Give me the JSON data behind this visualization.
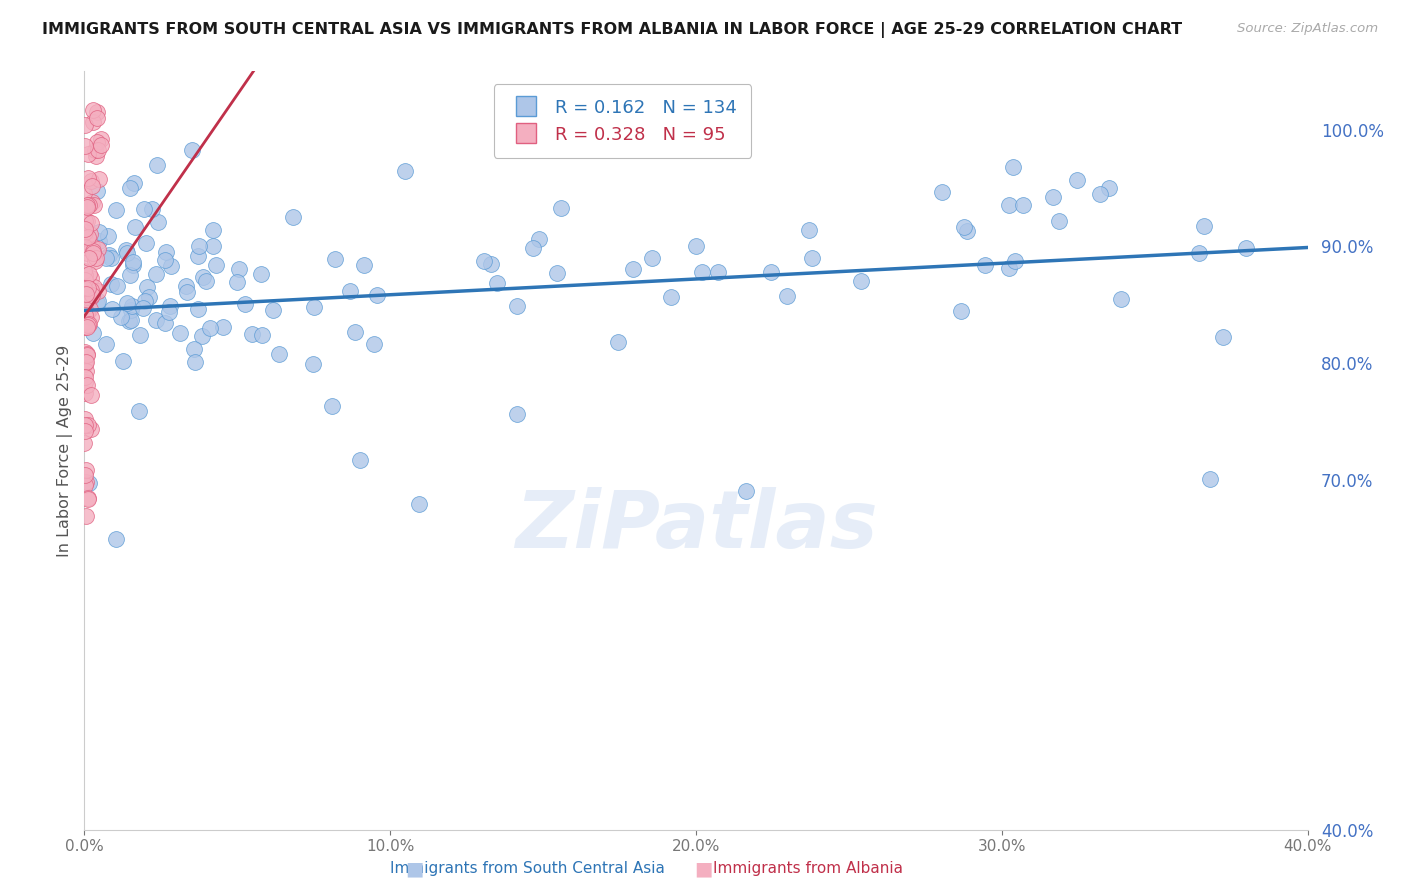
{
  "title": "IMMIGRANTS FROM SOUTH CENTRAL ASIA VS IMMIGRANTS FROM ALBANIA IN LABOR FORCE | AGE 25-29 CORRELATION CHART",
  "source": "Source: ZipAtlas.com",
  "ylabel": "In Labor Force | Age 25-29",
  "xlim": [
    0.0,
    0.4
  ],
  "ylim": [
    0.4,
    1.05
  ],
  "xticks": [
    0.0,
    0.1,
    0.2,
    0.3,
    0.4
  ],
  "yticks_right": [
    0.4,
    0.7,
    0.8,
    0.9,
    1.0
  ],
  "blue_R": 0.162,
  "blue_N": 134,
  "pink_R": 0.328,
  "pink_N": 95,
  "blue_color": "#aec6e8",
  "blue_edge_color": "#5b9bd5",
  "blue_line_color": "#2e75b6",
  "pink_color": "#f4afc0",
  "pink_edge_color": "#e06080",
  "pink_line_color": "#c0304a",
  "pink_dash_color": "#e8a0b0",
  "watermark": "ZiPatlas",
  "legend_label_blue": "Immigrants from South Central Asia",
  "legend_label_pink": "Immigrants from Albania",
  "background_color": "#ffffff",
  "grid_color": "#dddddd",
  "title_color": "#1a1a1a",
  "axis_label_color": "#555555",
  "right_axis_color": "#4472c4",
  "source_color": "#aaaaaa"
}
